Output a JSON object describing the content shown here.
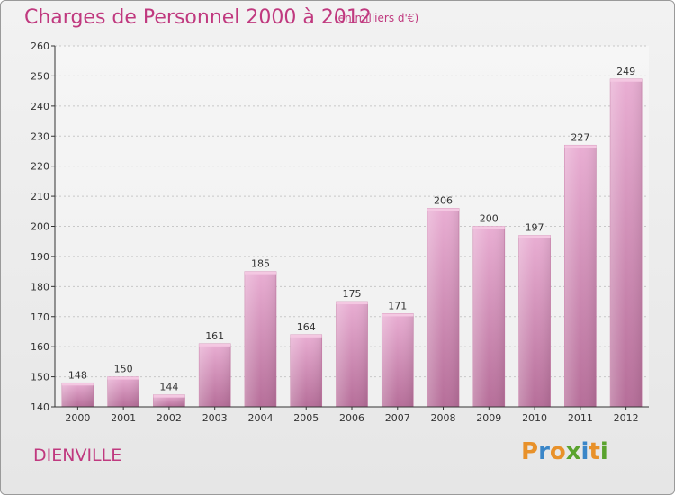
{
  "header": {
    "title": "Charges de Personnel 2000 à 2012",
    "subtitle": "(en milliers d'€)"
  },
  "footer": {
    "city": "DIENVILLE",
    "logo": {
      "letters": [
        "P",
        "r",
        "o",
        "x",
        "i",
        "t",
        "i"
      ],
      "colors": [
        "#e8912a",
        "#3a86c8",
        "#e8912a",
        "#5aa32e",
        "#3a86c8",
        "#e8912a",
        "#5aa32e"
      ]
    }
  },
  "chart_data": {
    "type": "bar",
    "categories": [
      "2000",
      "2001",
      "2002",
      "2003",
      "2004",
      "2005",
      "2006",
      "2007",
      "2008",
      "2009",
      "2010",
      "2011",
      "2012"
    ],
    "values": [
      148,
      150,
      144,
      161,
      185,
      164,
      175,
      171,
      206,
      200,
      197,
      227,
      249
    ],
    "ylim": [
      140,
      260
    ],
    "yticks": [
      140,
      150,
      160,
      170,
      180,
      190,
      200,
      210,
      220,
      230,
      240,
      250,
      260
    ],
    "grid": true,
    "bar_color": "#d58bb7",
    "data_labels": true
  }
}
